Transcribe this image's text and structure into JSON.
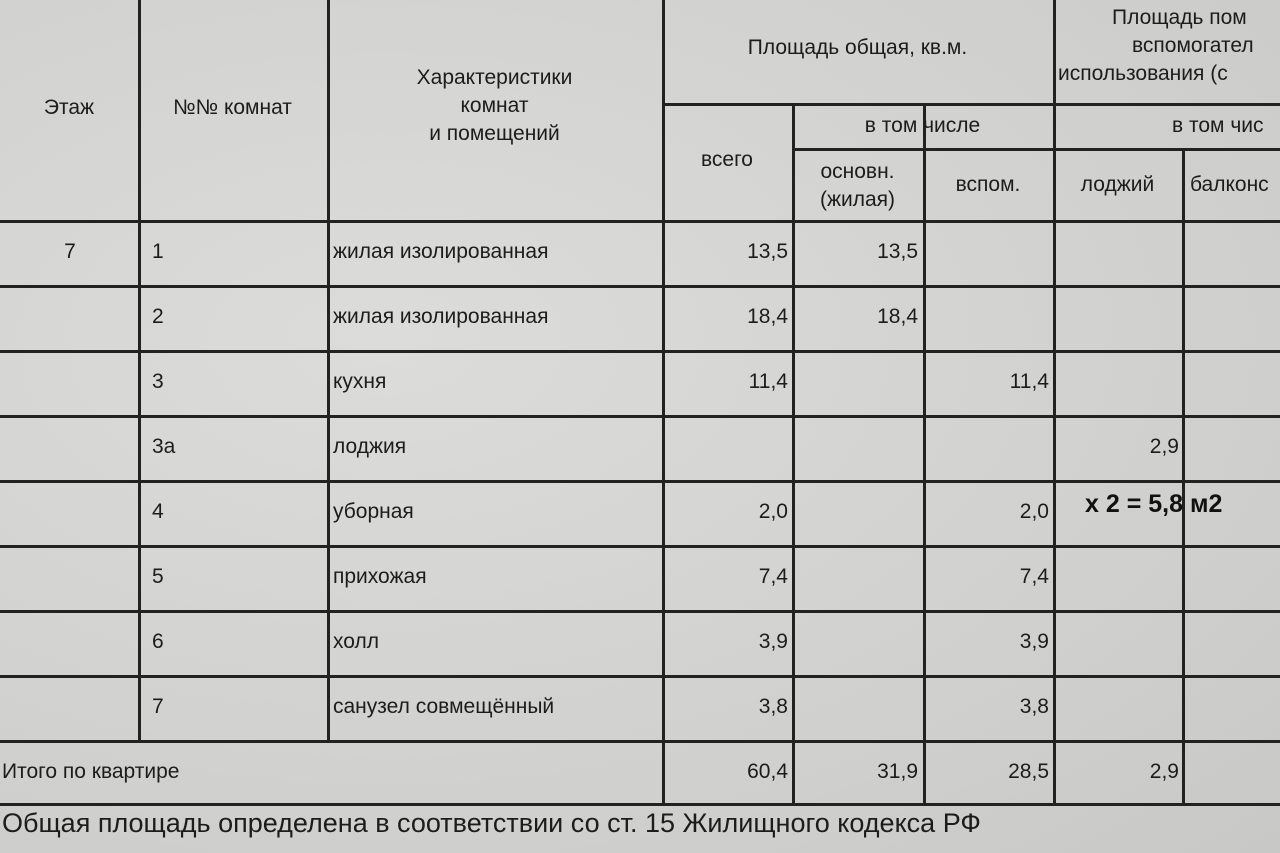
{
  "header": {
    "floor": "Этаж",
    "rooms": "№№ комнат",
    "characteristics": [
      "Характеристики",
      "комнат",
      "и помещений"
    ],
    "total_area": "Площадь общая, кв.м.",
    "including": "в том числе",
    "total": "всего",
    "main_living": [
      "основн.",
      "(жилая)"
    ],
    "auxiliary": "вспом.",
    "aux_area": [
      "Площадь пом",
      "вспомогател",
      "использования (с"
    ],
    "including_right": "в том чис",
    "loggias": "лоджий",
    "balconies": "балконс"
  },
  "floor_value": "7",
  "rows": [
    {
      "no": "1",
      "name": "жилая изолированная",
      "total": "13,5",
      "main": "13,5",
      "aux": "",
      "loggia": ""
    },
    {
      "no": "2",
      "name": "жилая изолированная",
      "total": "18,4",
      "main": "18,4",
      "aux": "",
      "loggia": ""
    },
    {
      "no": "3",
      "name": "кухня",
      "total": "11,4",
      "main": "",
      "aux": "11,4",
      "loggia": ""
    },
    {
      "no": "3а",
      "name": "лоджия",
      "total": "",
      "main": "",
      "aux": "",
      "loggia": "2,9"
    },
    {
      "no": "4",
      "name": "уборная",
      "total": "2,0",
      "main": "",
      "aux": "2,0",
      "loggia": ""
    },
    {
      "no": "5",
      "name": "прихожая",
      "total": "7,4",
      "main": "",
      "aux": "7,4",
      "loggia": ""
    },
    {
      "no": "6",
      "name": "холл",
      "total": "3,9",
      "main": "",
      "aux": "3,9",
      "loggia": ""
    },
    {
      "no": "7",
      "name": "санузел совмещённый",
      "total": "3,8",
      "main": "",
      "aux": "3,8",
      "loggia": ""
    }
  ],
  "totals": {
    "label": "Итого по квартире",
    "total": "60,4",
    "main": "31,9",
    "aux": "28,5",
    "loggia": "2,9"
  },
  "annotation": "х 2 = 5,8 м2",
  "footer": "Общая площадь определена в соответствии со ст. 15 Жилищного кодекса РФ"
}
